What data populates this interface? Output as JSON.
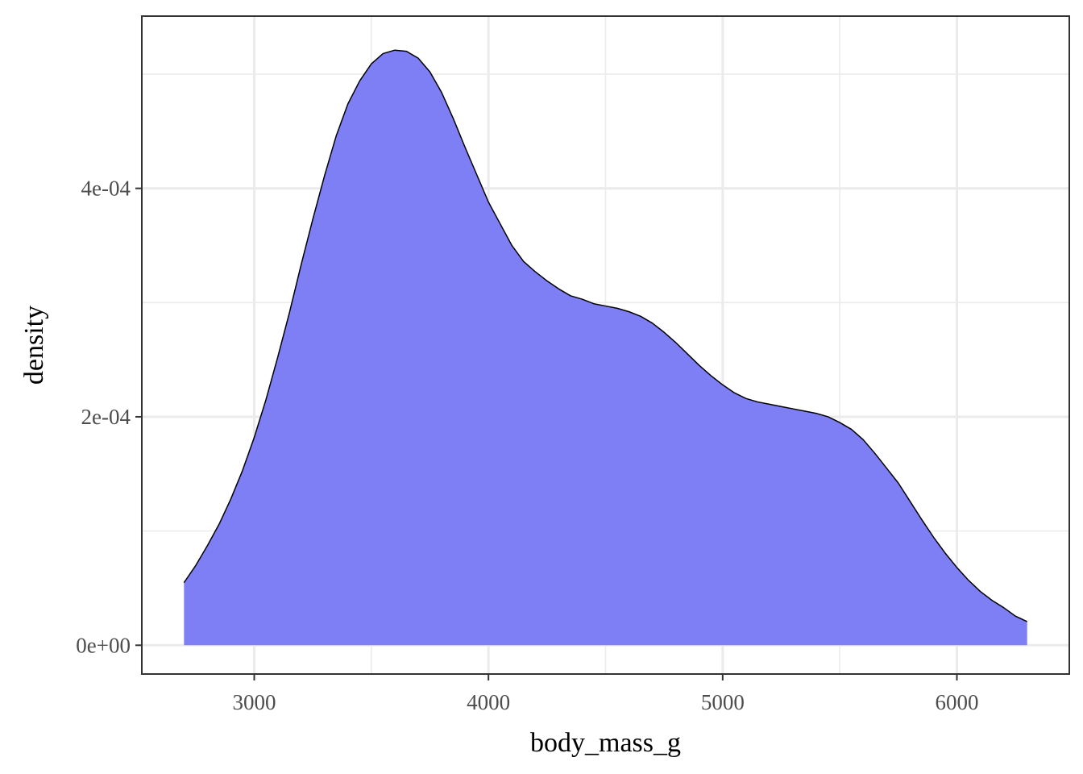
{
  "chart_data": {
    "type": "area",
    "title": "",
    "xlabel": "body_mass_g",
    "ylabel": "density",
    "xlim": [
      2520,
      6480
    ],
    "ylim": [
      -2.52e-05,
      0.0005508
    ],
    "x_ticks": [
      {
        "value": 3000,
        "label": "3000"
      },
      {
        "value": 4000,
        "label": "4000"
      },
      {
        "value": 5000,
        "label": "5000"
      },
      {
        "value": 6000,
        "label": "6000"
      }
    ],
    "x_minor_ticks": [
      3500,
      4500,
      5500
    ],
    "y_ticks": [
      {
        "value": 0,
        "label": "0e+00"
      },
      {
        "value": 0.0002,
        "label": "2e-04"
      },
      {
        "value": 0.0004,
        "label": "4e-04"
      }
    ],
    "y_minor_ticks": [
      0.0001,
      0.0003,
      0.0005
    ],
    "grid": true,
    "legend": "none",
    "theme": "bw",
    "fill_color": "#7f7ff5",
    "line_color": "#000000",
    "series": [
      {
        "x": [
          2700,
          2750,
          2800,
          2850,
          2900,
          2950,
          3000,
          3050,
          3100,
          3150,
          3200,
          3250,
          3300,
          3350,
          3400,
          3450,
          3500,
          3550,
          3600,
          3650,
          3700,
          3750,
          3800,
          3850,
          3900,
          3950,
          4000,
          4050,
          4100,
          4150,
          4200,
          4250,
          4300,
          4350,
          4400,
          4450,
          4500,
          4550,
          4600,
          4650,
          4700,
          4750,
          4800,
          4850,
          4900,
          4950,
          5000,
          5050,
          5100,
          5150,
          5200,
          5250,
          5300,
          5350,
          5400,
          5450,
          5500,
          5550,
          5600,
          5650,
          5700,
          5750,
          5800,
          5850,
          5900,
          5950,
          6000,
          6050,
          6100,
          6150,
          6200,
          6250,
          6300
        ],
        "y": [
          5.48e-05,
          6.98e-05,
          8.72e-05,
          0.000106,
          0.000128,
          0.000153,
          0.000182,
          0.000215,
          0.000252,
          0.000291,
          0.000333,
          0.000373,
          0.000411,
          0.000446,
          0.000474,
          0.000494,
          0.000509,
          0.000518,
          0.000521,
          0.00052,
          0.000514,
          0.000502,
          0.000484,
          0.000461,
          0.000436,
          0.000412,
          0.000388,
          0.000369,
          0.00035,
          0.000336,
          0.000327,
          0.000319,
          0.000312,
          0.000306,
          0.000303,
          0.000299,
          0.000297,
          0.000295,
          0.000292,
          0.000288,
          0.000282,
          0.000274,
          0.000265,
          0.000255,
          0.000245,
          0.000236,
          0.000228,
          0.000221,
          0.000216,
          0.000213,
          0.000211,
          0.000209,
          0.000207,
          0.000205,
          0.000203,
          0.0002,
          0.000195,
          0.000189,
          0.00018,
          0.000168,
          0.000155,
          0.000142,
          0.000126,
          0.00011,
          9.47e-05,
          8.07e-05,
          6.81e-05,
          5.68e-05,
          4.71e-05,
          3.93e-05,
          3.29e-05,
          2.55e-05,
          2.07e-05
        ]
      }
    ]
  }
}
